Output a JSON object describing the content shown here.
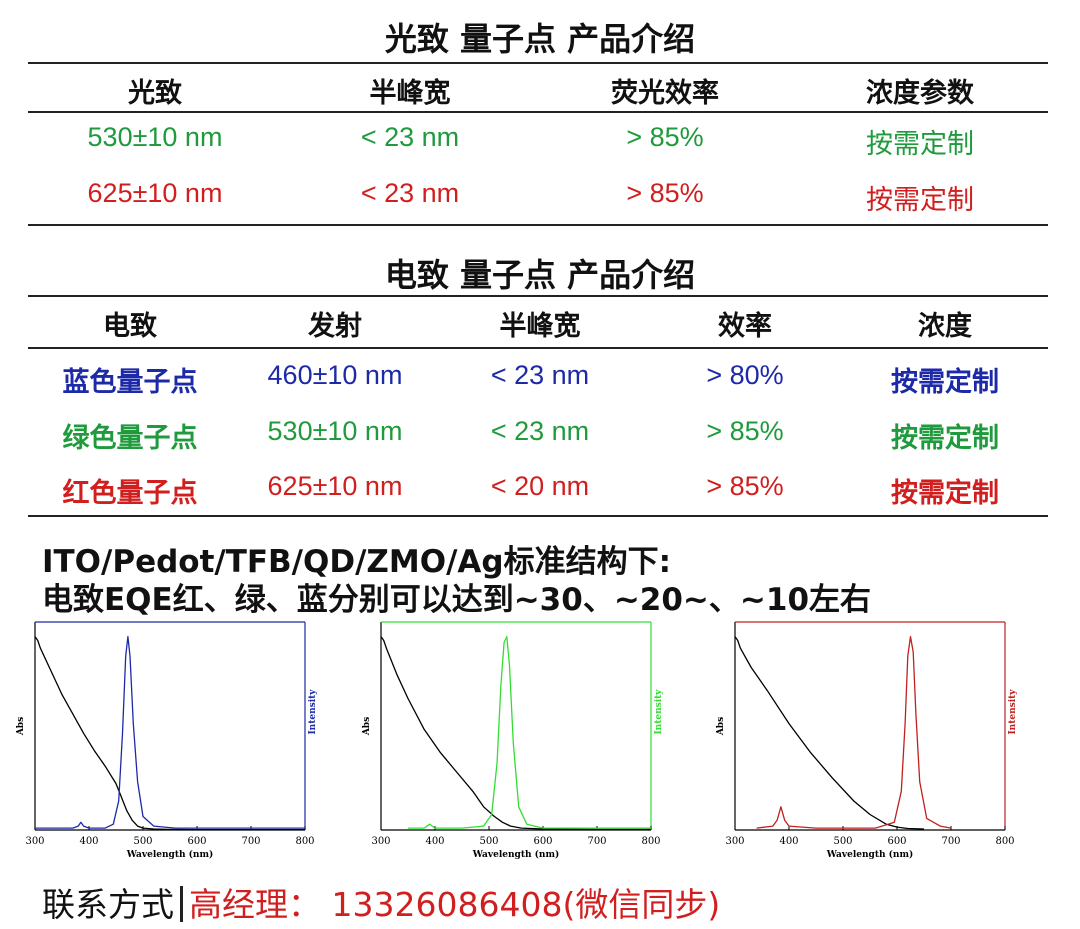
{
  "pl": {
    "title": "光致 量子点 产品介绍",
    "headers": [
      "光致",
      "半峰宽",
      "荧光效率",
      "浓度参数"
    ],
    "rows": [
      {
        "wavelength": "530±10 nm",
        "fwhm": "< 23 nm",
        "efficiency": "> 85%",
        "concentration": "按需定制",
        "color": "#1f9a3c"
      },
      {
        "wavelength": "625±10 nm",
        "fwhm": "< 23 nm",
        "efficiency": "> 85%",
        "concentration": "按需定制",
        "color": "#d11f1f"
      }
    ]
  },
  "el": {
    "title": "电致 量子点 产品介绍",
    "headers": [
      "电致",
      "发射",
      "半峰宽",
      "效率",
      "浓度"
    ],
    "rows": [
      {
        "name": "蓝色量子点",
        "emission": "460±10 nm",
        "fwhm": "< 23 nm",
        "efficiency": "> 80%",
        "concentration": "按需定制",
        "color": "#1c2aa8"
      },
      {
        "name": "绿色量子点",
        "emission": "530±10 nm",
        "fwhm": "< 23 nm",
        "efficiency": "> 85%",
        "concentration": "按需定制",
        "color": "#1f9a3c"
      },
      {
        "name": "红色量子点",
        "emission": "625±10 nm",
        "fwhm": "< 20 nm",
        "efficiency": "> 85%",
        "concentration": "按需定制",
        "color": "#d11f1f"
      }
    ]
  },
  "note": {
    "line1": "ITO/Pedot/TFB/QD/ZMO/Ag标准结构下:",
    "line2": "电致EQE红、绿、蓝分别可以达到~30、~20~、~10左右"
  },
  "contact": {
    "label": "联系方式",
    "person": "高经理：",
    "phone": "13326086408",
    "suffix": "(微信同步)"
  },
  "chart_data": [
    {
      "type": "line",
      "xlabel": "Wavelength (nm)",
      "ylabel_left": "Abs",
      "ylabel_right": "Intensity",
      "xlim": [
        300,
        800
      ],
      "xticks": [
        300,
        400,
        500,
        600,
        700,
        800
      ],
      "accent": "#1c2aa8",
      "series": [
        {
          "axis": "left",
          "color": "#000000",
          "x": [
            300,
            305,
            310,
            330,
            350,
            370,
            390,
            410,
            430,
            450,
            460,
            470,
            480,
            490,
            500,
            520,
            550,
            600,
            700,
            800
          ],
          "y": [
            1.0,
            0.98,
            0.94,
            0.82,
            0.7,
            0.6,
            0.5,
            0.41,
            0.33,
            0.24,
            0.17,
            0.1,
            0.05,
            0.02,
            0.01,
            0.005,
            0.003,
            0.002,
            0.002,
            0.002
          ]
        },
        {
          "axis": "right",
          "color": "#1c2aa8",
          "x": [
            300,
            370,
            380,
            385,
            390,
            400,
            430,
            445,
            455,
            462,
            468,
            472,
            476,
            482,
            490,
            500,
            520,
            560,
            700,
            800
          ],
          "y": [
            0.01,
            0.01,
            0.02,
            0.04,
            0.02,
            0.01,
            0.01,
            0.03,
            0.15,
            0.5,
            0.9,
            1.0,
            0.9,
            0.55,
            0.25,
            0.07,
            0.02,
            0.01,
            0.01,
            0.01
          ]
        }
      ]
    },
    {
      "type": "line",
      "xlabel": "Wavelength (nm)",
      "ylabel_left": "Abs",
      "ylabel_right": "Intensity",
      "xlim": [
        300,
        800
      ],
      "xticks": [
        300,
        400,
        500,
        600,
        700,
        800
      ],
      "accent": "#33dd33",
      "series": [
        {
          "axis": "left",
          "color": "#000000",
          "x": [
            300,
            305,
            310,
            330,
            350,
            380,
            410,
            440,
            470,
            490,
            510,
            525,
            540,
            560,
            600,
            700,
            800
          ],
          "y": [
            1.0,
            0.98,
            0.94,
            0.8,
            0.68,
            0.52,
            0.4,
            0.3,
            0.2,
            0.12,
            0.07,
            0.04,
            0.02,
            0.01,
            0.005,
            0.003,
            0.003
          ]
        },
        {
          "axis": "right",
          "color": "#33dd33",
          "x": [
            350,
            380,
            390,
            400,
            450,
            490,
            505,
            515,
            522,
            528,
            533,
            538,
            545,
            555,
            570,
            600,
            800
          ],
          "y": [
            0.01,
            0.01,
            0.03,
            0.01,
            0.01,
            0.02,
            0.08,
            0.35,
            0.75,
            0.97,
            1.0,
            0.85,
            0.45,
            0.12,
            0.03,
            0.01,
            0.01
          ]
        }
      ]
    },
    {
      "type": "line",
      "xlabel": "Wavelength (nm)",
      "ylabel_left": "Abs",
      "ylabel_right": "Intensity",
      "xlim": [
        300,
        800
      ],
      "xticks": [
        300,
        400,
        500,
        600,
        700,
        800
      ],
      "accent": "#c02020",
      "series": [
        {
          "axis": "left",
          "color": "#000000",
          "x": [
            300,
            305,
            310,
            330,
            360,
            400,
            440,
            480,
            520,
            550,
            580,
            600,
            620,
            650
          ],
          "y": [
            1.0,
            0.98,
            0.94,
            0.84,
            0.72,
            0.55,
            0.4,
            0.27,
            0.15,
            0.08,
            0.03,
            0.015,
            0.008,
            0.005
          ]
        },
        {
          "axis": "right",
          "color": "#c02020",
          "x": [
            340,
            370,
            378,
            385,
            392,
            400,
            450,
            560,
            595,
            608,
            615,
            620,
            625,
            630,
            635,
            642,
            655,
            680,
            700
          ],
          "y": [
            0.01,
            0.02,
            0.05,
            0.12,
            0.05,
            0.02,
            0.01,
            0.01,
            0.04,
            0.2,
            0.55,
            0.9,
            1.0,
            0.92,
            0.6,
            0.25,
            0.06,
            0.02,
            0.01
          ]
        }
      ]
    }
  ]
}
